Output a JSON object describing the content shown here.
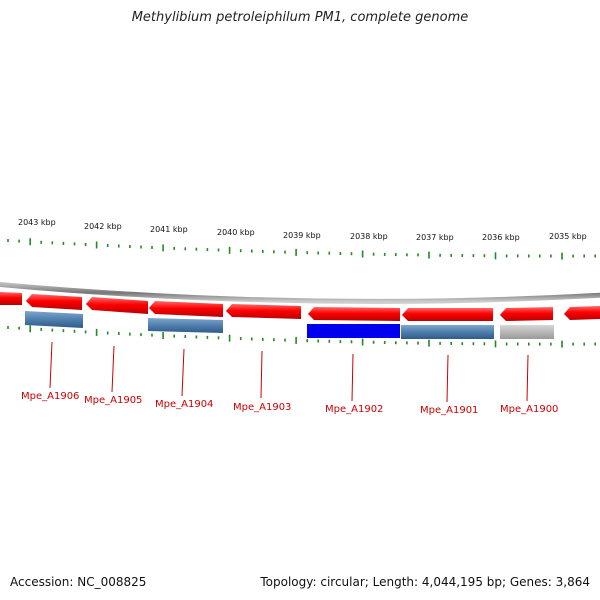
{
  "title": "Methylibium petroleiphilum PM1, complete genome",
  "accession": "Accession: NC_008825",
  "summary": "Topology: circular; Length: 4,044,195 bp; Genes: 3,864",
  "colors": {
    "forward_gene": "#ff0000",
    "gene_label": "#cc0000",
    "cds_blue": "#4f7fae",
    "cds_highlight": "#0000ee",
    "cds_gray": "#b0b0b0",
    "tick": "#228b22",
    "backbone": "#888888"
  },
  "scale": {
    "unit": "kbp",
    "labels": [
      "2043 kbp",
      "2042 kbp",
      "2041 kbp",
      "2040 kbp",
      "2039 kbp",
      "2038 kbp",
      "2037 kbp",
      "2036 kbp",
      "2035 kbp"
    ]
  },
  "gene_labels": [
    "Mpe_A1906",
    "Mpe_A1905",
    "Mpe_A1904",
    "Mpe_A1903",
    "Mpe_A1902",
    "Mpe_A1901",
    "Mpe_A1900"
  ]
}
